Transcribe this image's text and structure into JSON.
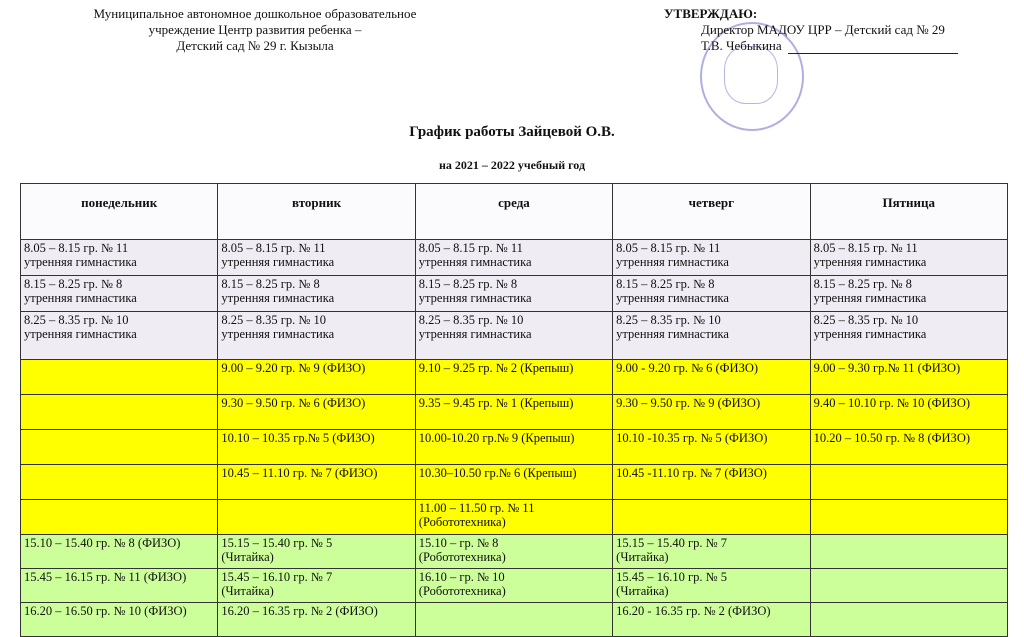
{
  "header": {
    "organization": [
      "Муниципальное автономное дошкольное образовательное",
      "учреждение Центр развития ребенка –",
      "Детский сад № 29 г. Кызыла"
    ],
    "approval": {
      "heading": "УТВЕРЖДАЮ:",
      "position": "Директор МАДОУ ЦРР – Детский сад  № 29",
      "name": "Т.В. Чебыкина"
    },
    "title": "График работы Зайцевой О.В.",
    "subtitle": "на 2021 – 2022 учебный год"
  },
  "table": {
    "columns": [
      "понедельник",
      "вторник",
      "среда",
      "четверг",
      "Пятница"
    ],
    "rows": [
      {
        "style": "m",
        "cells": [
          "8.05 – 8.15 гр. № 11\nутренняя гимнастика",
          "8.05 – 8.15 гр. № 11\nутренняя гимнастика",
          "8.05 – 8.15 гр. № 11\nутренняя гимнастика",
          "8.05 – 8.15 гр. № 11\nутренняя гимнастика",
          "8.05 – 8.15 гр. № 11\nутренняя гимнастика"
        ]
      },
      {
        "style": "m",
        "cells": [
          "8.15 – 8.25 гр. № 8\nутренняя гимнастика",
          "8.15 – 8.25 гр. № 8\nутренняя гимнастика",
          "8.15 – 8.25 гр. № 8\nутренняя гимнастика",
          "8.15 – 8.25 гр. № 8\nутренняя гимнастика",
          "8.15 – 8.25 гр. № 8\nутренняя гимнастика"
        ]
      },
      {
        "style": "m tall",
        "cells": [
          "8.25 – 8.35 гр. № 10\nутренняя гимнастика",
          "8.25 – 8.35 гр. № 10\nутренняя гимнастика",
          "8.25 – 8.35 гр. № 10\nутренняя гимнастика",
          "8.25 – 8.35 гр. № 10\nутренняя гимнастика",
          "8.25 – 8.35 гр. № 10\nутренняя гимнастика"
        ]
      },
      {
        "style": "y",
        "cells": [
          "",
          "9.00 – 9.20 гр. № 9 (ФИЗО)",
          "9.10 – 9.25 гр. № 2 (Крепыш)",
          "9.00 - 9.20 гр. № 6 (ФИЗО)",
          "9.00 – 9.30 гр.№ 11 (ФИЗО)"
        ]
      },
      {
        "style": "y",
        "cells": [
          "",
          "9.30 – 9.50 гр. № 6 (ФИЗО)",
          "9.35 – 9.45 гр. № 1 (Крепыш)",
          "9.30 – 9.50 гр. № 9 (ФИЗО)",
          "9.40 – 10.10 гр. № 10 (ФИЗО)"
        ]
      },
      {
        "style": "y",
        "cells": [
          "",
          "10.10 – 10.35 гр.№ 5 (ФИЗО)",
          "10.00-10.20 гр.№ 9 (Крепыш)",
          "10.10 -10.35 гр. № 5 (ФИЗО)",
          "10.20 – 10.50 гр. № 8 (ФИЗО)"
        ]
      },
      {
        "style": "y",
        "cells": [
          "",
          "10.45 – 11.10 гр. № 7 (ФИЗО)",
          "10.30–10.50 гр.№ 6 (Крепыш)",
          "10.45 -11.10 гр. № 7 (ФИЗО)",
          ""
        ]
      },
      {
        "style": "y",
        "cells": [
          "",
          "",
          "11.00 – 11.50 гр. № 11\n(Робототехника)",
          "",
          ""
        ]
      },
      {
        "style": "g",
        "cells": [
          "15.10 – 15.40 гр. № 8 (ФИЗО)",
          "15.15 – 15.40 гр. № 5\n(Читайка)",
          "15.10 – гр. № 8\n(Робототехника)",
          "15.15 – 15.40 гр. № 7\n(Читайка)",
          ""
        ]
      },
      {
        "style": "g",
        "cells": [
          "15.45 – 16.15 гр. № 11 (ФИЗО)",
          "15.45 – 16.10 гр. № 7\n(Читайка)",
          "16.10 – гр. № 10\n(Робототехника)",
          "15.45 – 16.10 гр. № 5\n(Читайка)",
          ""
        ]
      },
      {
        "style": "g",
        "cells": [
          "16.20 – 16.50 гр. № 10 (ФИЗО)",
          "16.20 – 16.35 гр. № 2 (ФИЗО)",
          "",
          "16.20 - 16.35 гр. № 2 (ФИЗО)",
          ""
        ]
      }
    ]
  }
}
